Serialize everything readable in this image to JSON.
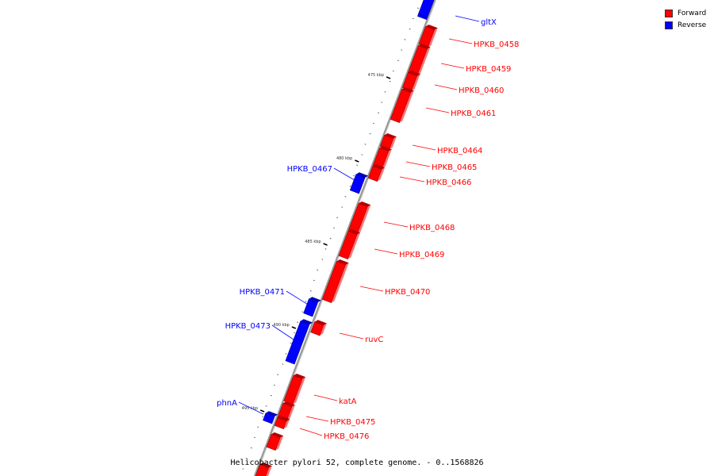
{
  "map": {
    "backbone_color": "#9a9a9a",
    "forward_color": "#ff0000",
    "reverse_color": "#0000ff",
    "caption": "Helicobacter pylori 52, complete genome. - 0..1568826"
  },
  "legend": {
    "forward": {
      "label": "Forward",
      "color": "#ff0000"
    },
    "reverse": {
      "label": "Reverse",
      "color": "#0000ff"
    }
  },
  "ticks": [
    {
      "label": "475 kbp",
      "kbp": 475
    },
    {
      "label": "480 kbp",
      "kbp": 480
    },
    {
      "label": "485 kbp",
      "kbp": 485
    },
    {
      "label": "490 kbp",
      "kbp": 490
    },
    {
      "label": "495 kbp",
      "kbp": 495
    }
  ],
  "genes": [
    {
      "name": "",
      "strand": "reverse",
      "labeled": false
    },
    {
      "name": "gltX",
      "strand": "reverse",
      "labeled": true
    },
    {
      "name": "HPKB_0458",
      "strand": "forward",
      "labeled": true
    },
    {
      "name": "HPKB_0459",
      "strand": "forward",
      "labeled": true
    },
    {
      "name": "HPKB_0460",
      "strand": "forward",
      "labeled": true
    },
    {
      "name": "HPKB_0461",
      "strand": "forward",
      "labeled": true
    },
    {
      "name": "HPKB_0464",
      "strand": "forward",
      "labeled": true
    },
    {
      "name": "HPKB_0465",
      "strand": "forward",
      "labeled": true
    },
    {
      "name": "HPKB_0466",
      "strand": "forward",
      "labeled": true
    },
    {
      "name": "HPKB_0467",
      "strand": "reverse",
      "labeled": true
    },
    {
      "name": "HPKB_0468",
      "strand": "forward",
      "labeled": true
    },
    {
      "name": "HPKB_0469",
      "strand": "forward",
      "labeled": true
    },
    {
      "name": "HPKB_0470",
      "strand": "forward",
      "labeled": true
    },
    {
      "name": "HPKB_0471",
      "strand": "reverse",
      "labeled": true
    },
    {
      "name": "ruvC",
      "strand": "forward",
      "labeled": true
    },
    {
      "name": "HPKB_0473",
      "strand": "reverse",
      "labeled": true
    },
    {
      "name": "katA",
      "strand": "forward",
      "labeled": true
    },
    {
      "name": "HPKB_0475",
      "strand": "forward",
      "labeled": true
    },
    {
      "name": "HPKB_0476",
      "strand": "forward",
      "labeled": true
    },
    {
      "name": "phnA",
      "strand": "reverse",
      "labeled": true
    },
    {
      "name": "",
      "strand": "forward",
      "labeled": false
    },
    {
      "name": "",
      "strand": "forward",
      "labeled": false
    }
  ]
}
